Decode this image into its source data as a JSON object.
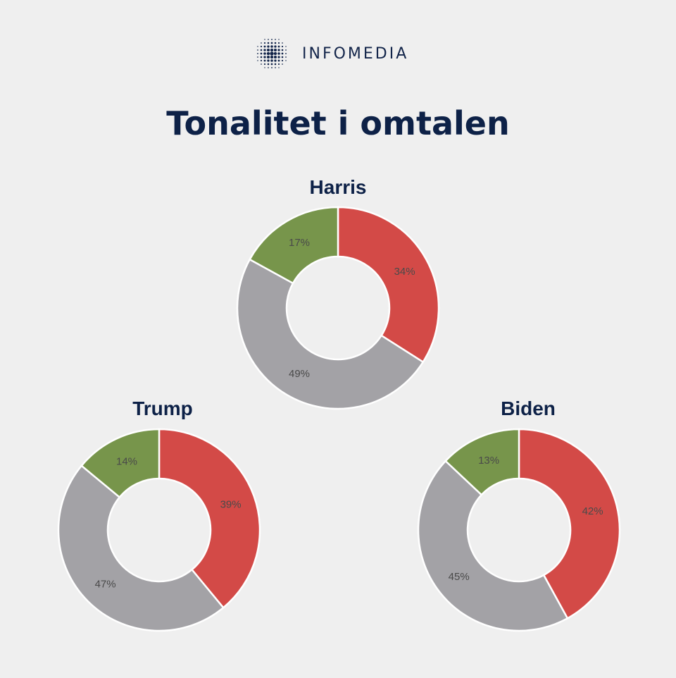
{
  "brand": {
    "name": "INFOMEDIA"
  },
  "page": {
    "title": "Tonalitet i omtalen"
  },
  "colors": {
    "negative": "#d34a47",
    "neutral": "#a3a2a6",
    "positive": "#77954b",
    "text": "#0d2147"
  },
  "chart_data": [
    {
      "type": "pie",
      "title": "Harris",
      "slices": [
        {
          "value": 34,
          "label": "34%",
          "color": "#d34a47"
        },
        {
          "value": 49,
          "label": "49%",
          "color": "#a3a2a6"
        },
        {
          "value": 17,
          "label": "17%",
          "color": "#77954b"
        }
      ]
    },
    {
      "type": "pie",
      "title": "Trump",
      "slices": [
        {
          "value": 39,
          "label": "39%",
          "color": "#d34a47"
        },
        {
          "value": 47,
          "label": "47%",
          "color": "#a3a2a6"
        },
        {
          "value": 14,
          "label": "14%",
          "color": "#77954b"
        }
      ]
    },
    {
      "type": "pie",
      "title": "Biden",
      "slices": [
        {
          "value": 42,
          "label": "42%",
          "color": "#d34a47"
        },
        {
          "value": 45,
          "label": "45%",
          "color": "#a3a2a6"
        },
        {
          "value": 13,
          "label": "13%",
          "color": "#77954b"
        }
      ]
    }
  ]
}
